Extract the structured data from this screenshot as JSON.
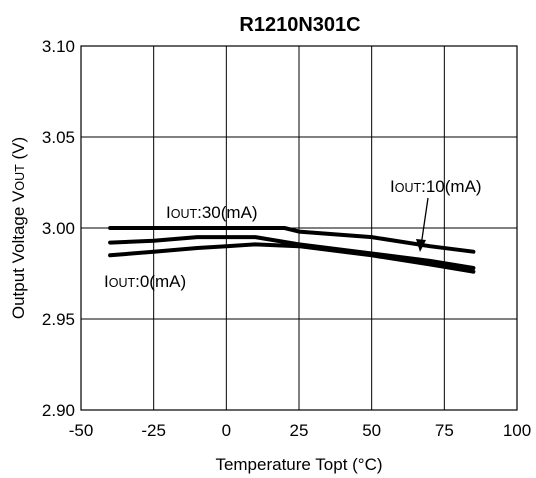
{
  "chart_data": {
    "type": "line",
    "title": "R1210N301C",
    "xlabel": "Temperature Topt (°C)",
    "ylabel_prefix": "Output Voltage V",
    "ylabel_sub": "OUT",
    "ylabel_suffix": " (V)",
    "xlim": [
      -50,
      100
    ],
    "ylim": [
      2.9,
      3.1
    ],
    "xticks": [
      "-50",
      "-25",
      "0",
      "25",
      "50",
      "75",
      "100"
    ],
    "yticks": [
      "2.90",
      "2.95",
      "3.00",
      "3.05",
      "3.10"
    ],
    "grid": true,
    "series": [
      {
        "name_prefix": "I",
        "name_sub": "OUT",
        "name_suffix": ":0(mA)",
        "x": [
          -40,
          -25,
          -10,
          0,
          10,
          25,
          50,
          70,
          85
        ],
        "y": [
          2.985,
          2.987,
          2.989,
          2.99,
          2.991,
          2.99,
          2.985,
          2.98,
          2.976
        ]
      },
      {
        "name_prefix": "I",
        "name_sub": "OUT",
        "name_suffix": ":10(mA)",
        "x": [
          -40,
          -25,
          -10,
          0,
          10,
          25,
          50,
          70,
          85
        ],
        "y": [
          2.992,
          2.993,
          2.995,
          2.995,
          2.995,
          2.991,
          2.986,
          2.982,
          2.978
        ]
      },
      {
        "name_prefix": "I",
        "name_sub": "OUT",
        "name_suffix": ":30(mA)",
        "x": [
          -40,
          -20,
          0,
          20,
          25,
          50,
          70,
          85
        ],
        "y": [
          3.0,
          3.0,
          3.0,
          3.0,
          2.998,
          2.995,
          2.99,
          2.987
        ]
      }
    ]
  }
}
